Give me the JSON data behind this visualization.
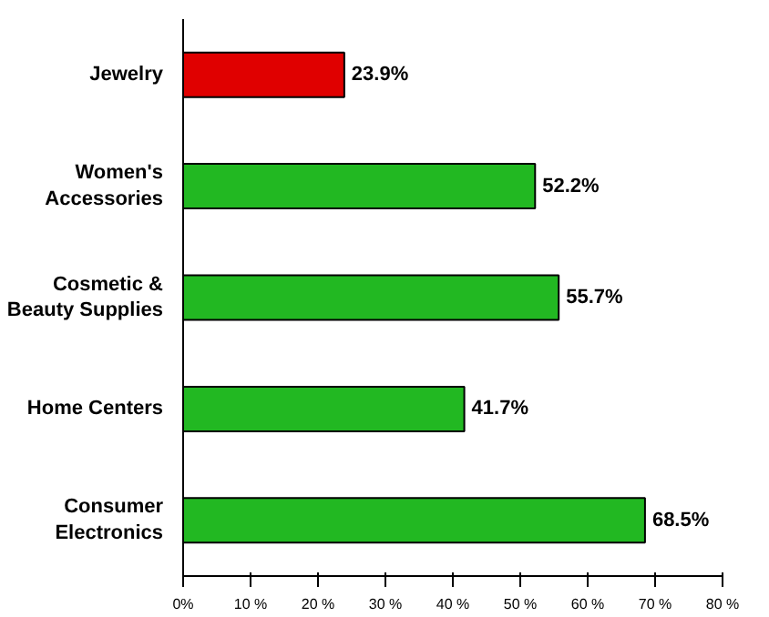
{
  "chart_data": {
    "type": "bar",
    "orientation": "horizontal",
    "categories": [
      "Jewelry",
      "Women's\nAccessories",
      "Cosmetic &\nBeauty Supplies",
      "Home Centers",
      "Consumer\nElectronics"
    ],
    "values": [
      23.9,
      52.2,
      55.7,
      41.7,
      68.5
    ],
    "colors": [
      "#e00000",
      "#22b822",
      "#22b822",
      "#22b822",
      "#22b822"
    ],
    "value_labels": [
      "23.9%",
      "52.2%",
      "55.7%",
      "41.7%",
      "68.5%"
    ],
    "xlim": [
      0,
      80
    ],
    "xticks": [
      {
        "value": 0,
        "label": "0%"
      },
      {
        "value": 10,
        "label": "10 %"
      },
      {
        "value": 20,
        "label": "20 %"
      },
      {
        "value": 30,
        "label": "30 %"
      },
      {
        "value": 40,
        "label": "40 %"
      },
      {
        "value": 50,
        "label": "50 %"
      },
      {
        "value": 60,
        "label": "60 %"
      },
      {
        "value": 70,
        "label": "70 %"
      },
      {
        "value": 80,
        "label": "80 %"
      }
    ],
    "grid": false
  }
}
